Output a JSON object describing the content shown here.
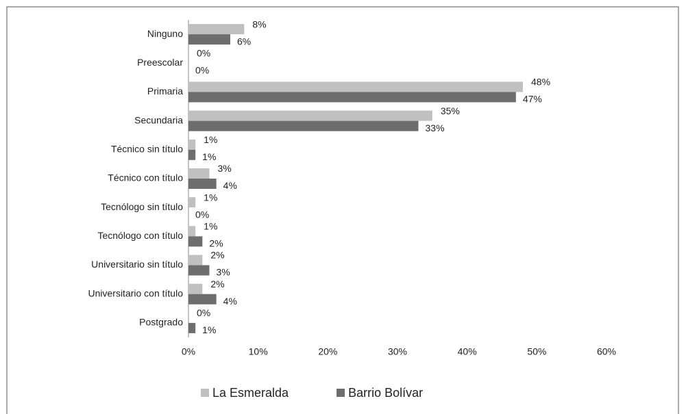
{
  "chart_data": {
    "type": "hbar",
    "categories": [
      "Ninguno",
      "Preescolar",
      "Primaria",
      "Secundaria",
      "Técnico sin título",
      "Técnico con título",
      "Tecnólogo sin título",
      "Tecnólogo con título",
      "Universitario sin título",
      "Universitario con título",
      "Postgrado"
    ],
    "series": [
      {
        "name": "La Esmeralda",
        "color": "#c0c0c0",
        "values": [
          8,
          0,
          48,
          35,
          1,
          3,
          1,
          1,
          2,
          2,
          0
        ],
        "value_labels": [
          "8%",
          "0%",
          "48%",
          "35%",
          "1%",
          "3%",
          "1%",
          "1%",
          "2%",
          "2%",
          "0%"
        ]
      },
      {
        "name": "Barrio Bolívar",
        "color": "#6d6d6d",
        "values": [
          6,
          0,
          47,
          33,
          1,
          4,
          0,
          2,
          3,
          4,
          1
        ],
        "value_labels": [
          "6%",
          "0%",
          "47%",
          "33%",
          "1%",
          "4%",
          "0%",
          "2%",
          "3%",
          "4%",
          "1%"
        ]
      }
    ],
    "xlim": [
      0,
      60
    ],
    "xticks": [
      {
        "value": 0,
        "label": "0%"
      },
      {
        "value": 10,
        "label": "10%"
      },
      {
        "value": 20,
        "label": "20%"
      },
      {
        "value": 30,
        "label": "30%"
      },
      {
        "value": 40,
        "label": "40%"
      },
      {
        "value": 50,
        "label": "50%"
      },
      {
        "value": 60,
        "label": "60%"
      }
    ],
    "grid": false,
    "legend": "bottom"
  }
}
